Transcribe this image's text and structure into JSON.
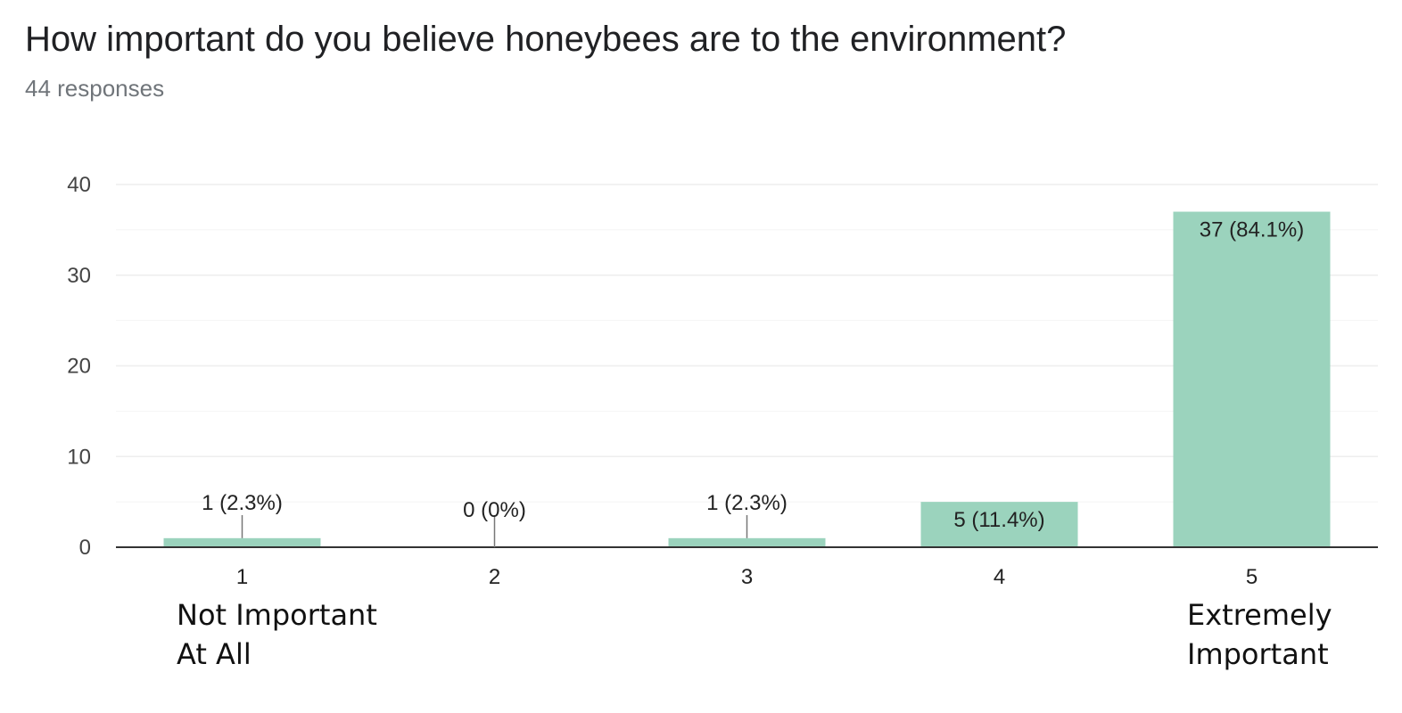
{
  "header": {
    "title": "How important do you believe honeybees are to the environment?",
    "responses": "44 responses"
  },
  "extremes": {
    "low_line1": "Not Important",
    "low_line2": "At All",
    "high_line1": "Extremely",
    "high_line2": "Important"
  },
  "colors": {
    "bar": "#9bd3bd",
    "grid": "#eeeeee",
    "axis": "#333333",
    "leader": "#777777"
  },
  "chart_data": {
    "type": "bar",
    "title": "How important do you believe honeybees are to the environment?",
    "subtitle": "44 responses",
    "categories": [
      "1",
      "2",
      "3",
      "4",
      "5"
    ],
    "values": [
      1,
      0,
      1,
      5,
      37
    ],
    "data_labels": [
      "1 (2.3%)",
      "0 (0%)",
      "1 (2.3%)",
      "5 (11.4%)",
      "37 (84.1%)"
    ],
    "yticks": [
      0,
      10,
      20,
      30,
      40
    ],
    "ylim": [
      0,
      40
    ],
    "grid": true,
    "legend": "none"
  }
}
